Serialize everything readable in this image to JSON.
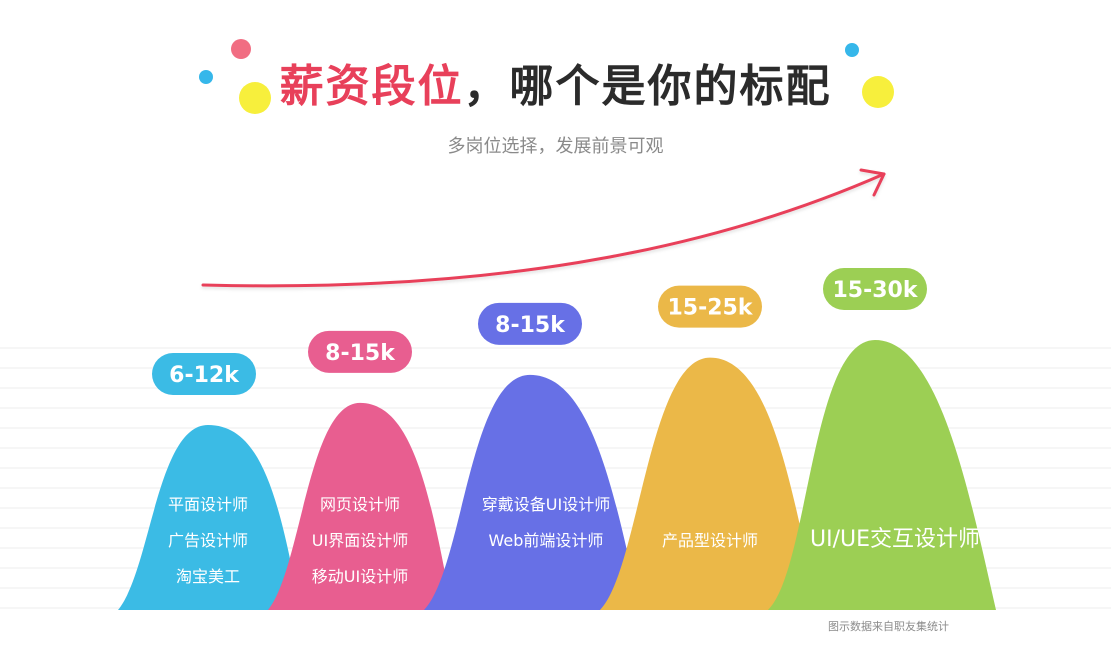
{
  "header": {
    "title_highlight": "薪资段位",
    "title_rest": "，哪个是你的标配",
    "subtitle": "多岗位选择，发展前景可观"
  },
  "source_note": "图示数据来自职友集统计",
  "colors": {
    "title_highlight": "#e8405a",
    "arrow": "#e8405a",
    "dot_pink": "#f16d82",
    "dot_blue": "#36b7ea",
    "dot_yellow": "#f7ef3c"
  },
  "chart_data": {
    "type": "area",
    "categories": [
      "6-12k",
      "8-15k",
      "8-15k",
      "15-25k",
      "15-30k"
    ],
    "series": [
      {
        "salary_min": 6,
        "salary_max": 12,
        "label": "6-12k",
        "color": "#3bbbe5",
        "roles": [
          "平面设计师",
          "广告设计师",
          "淘宝美工"
        ]
      },
      {
        "salary_min": 8,
        "salary_max": 15,
        "label": "8-15k",
        "color": "#e85e90",
        "roles": [
          "网页设计师",
          "UI界面设计师",
          "移动UI设计师"
        ]
      },
      {
        "salary_min": 8,
        "salary_max": 15,
        "label": "8-15k",
        "color": "#6770e6",
        "roles": [
          "穿戴设备UI设计师",
          "Web前端设计师"
        ]
      },
      {
        "salary_min": 15,
        "salary_max": 25,
        "label": "15-25k",
        "color": "#ebb848",
        "roles": [
          "产品型设计师"
        ]
      },
      {
        "salary_min": 15,
        "salary_max": 30,
        "label": "15-30k",
        "color": "#9ccf54",
        "roles": [
          "UI/UE交互设计师"
        ]
      }
    ],
    "title": "薪资段位，哪个是你的标配",
    "grid": true,
    "legend": "none"
  }
}
